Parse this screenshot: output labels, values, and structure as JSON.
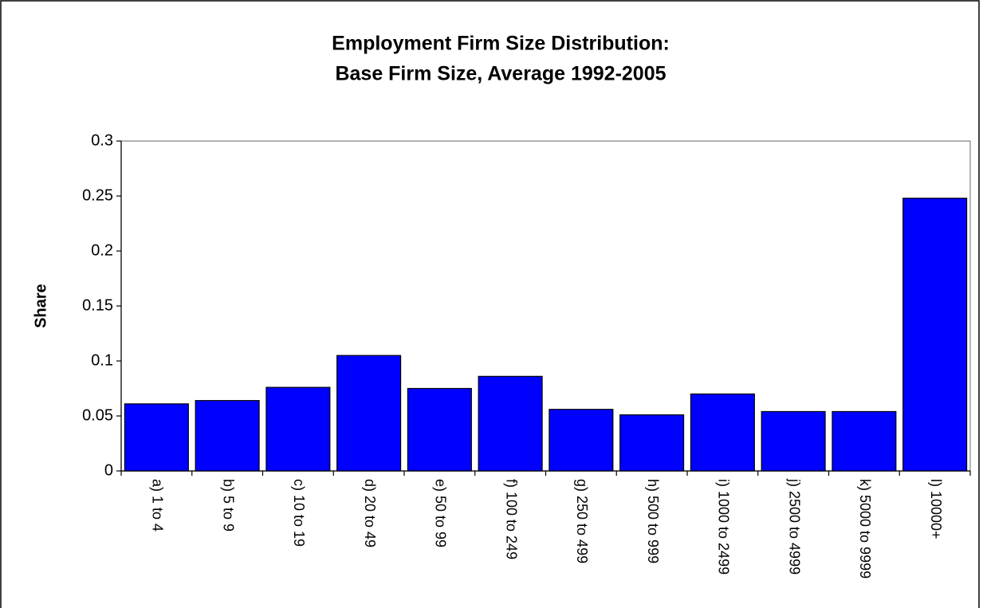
{
  "chart_data": {
    "type": "bar",
    "title": "Employment Firm Size Distribution:",
    "subtitle": "Base Firm Size, Average 1992-2005",
    "y_label": "Share",
    "categories": [
      "a) 1 to 4",
      "b) 5 to 9",
      "c) 10 to 19",
      "d) 20 to 49",
      "e) 50 to 99",
      "f) 100 to 249",
      "g) 250 to 499",
      "h) 500 to 999",
      "i) 1000 to 2499",
      "j) 2500 to 4999",
      "k) 5000 to 9999",
      "l) 10000+"
    ],
    "values": [
      0.061,
      0.064,
      0.076,
      0.105,
      0.075,
      0.086,
      0.056,
      0.051,
      0.07,
      0.054,
      0.054,
      0.248
    ],
    "color": "#0000ff",
    "ylim": [
      0,
      0.3
    ],
    "yticks": [
      0,
      0.05,
      0.1,
      0.15,
      0.2,
      0.25,
      0.3
    ],
    "grid": false
  }
}
